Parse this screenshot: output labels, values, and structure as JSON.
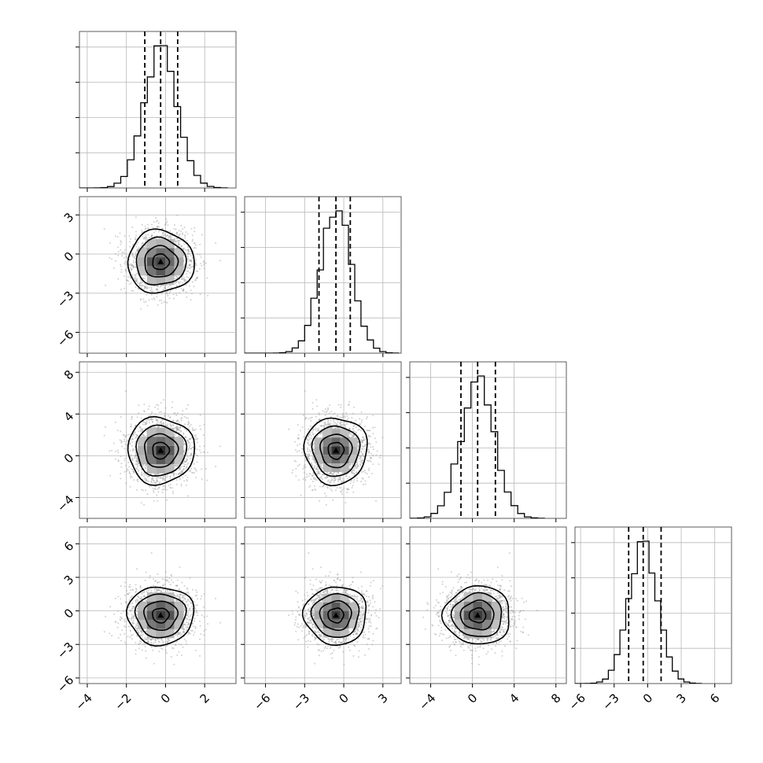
{
  "chart_data": {
    "type": "corner",
    "grid": true,
    "dimensions": [
      {
        "range": [
          -4.4,
          3.6
        ],
        "ticks": [
          -4,
          -2,
          0,
          2
        ],
        "tick_labels": [
          "−4",
          "−2",
          "0",
          "2"
        ],
        "mean": -0.25,
        "std": 0.85,
        "quantiles": [
          -1.06,
          -0.25,
          0.62
        ],
        "hist_peak": 1.0
      },
      {
        "range": [
          -7.6,
          4.4
        ],
        "ticks": [
          -6,
          -3,
          0,
          3
        ],
        "tick_labels": [
          "−6",
          "−3",
          "0",
          "3"
        ],
        "mean": -0.6,
        "std": 1.2,
        "quantiles": [
          -1.9,
          -0.6,
          0.5
        ],
        "hist_peak": 1.0
      },
      {
        "range": [
          -6.0,
          9.0
        ],
        "ticks": [
          -4,
          0,
          4,
          8
        ],
        "tick_labels": [
          "−4",
          "0",
          "4",
          "8"
        ],
        "mean": 0.5,
        "std": 1.6,
        "quantiles": [
          -1.1,
          0.5,
          2.2
        ],
        "hist_peak": 1.0
      },
      {
        "range": [
          -6.5,
          7.5
        ],
        "ticks": [
          -6,
          -3,
          0,
          3,
          6
        ],
        "tick_labels": [
          "−6",
          "−3",
          "0",
          "3",
          "6"
        ],
        "mean": -0.4,
        "std": 1.3,
        "quantiles": [
          -1.7,
          -0.4,
          1.2
        ],
        "hist_peak": 1.0
      }
    ],
    "y_ticks_rows": {
      "1": {
        "range": [
          -7.6,
          4.4
        ],
        "ticks": [
          -6,
          -3,
          0,
          3
        ],
        "tick_labels": [
          "−6",
          "−3",
          "0",
          "3"
        ]
      },
      "2": {
        "range": [
          -6.0,
          9.0
        ],
        "ticks": [
          -4,
          0,
          4,
          8
        ],
        "tick_labels": [
          "−4",
          "0",
          "4",
          "8"
        ]
      },
      "3": {
        "range": [
          -6.5,
          7.5
        ],
        "ticks": [
          -6,
          -3,
          0,
          3,
          6
        ],
        "tick_labels": [
          "−6",
          "−3",
          "0",
          "3",
          "6"
        ]
      }
    },
    "samples_shown": 1800,
    "contour_levels_sigma": [
      0.5,
      1.0,
      1.5,
      2.0
    ]
  }
}
